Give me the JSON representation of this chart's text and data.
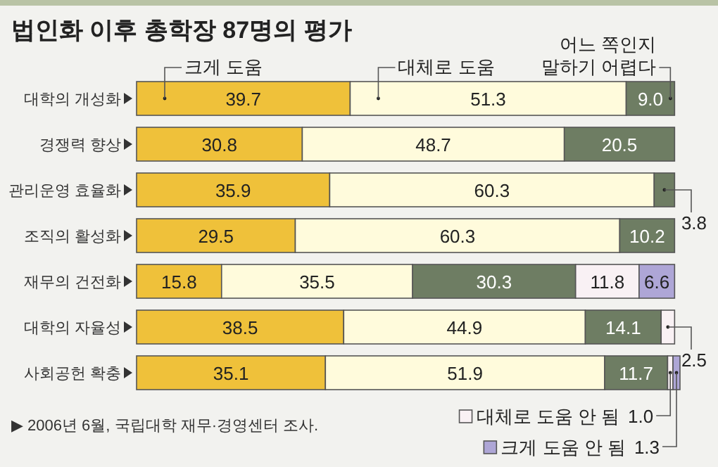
{
  "chart_data": {
    "type": "bar",
    "orientation": "horizontal",
    "stacked": true,
    "legend": "bottom right",
    "title": "법인화 이후 총학장 87명의 평가",
    "categories": [
      "대학의 개성화",
      "경쟁력 향상",
      "관리운영 효율화",
      "조직의 활성화",
      "재무의 건전화",
      "대학의 자율성",
      "사회공헌 확충"
    ],
    "series": [
      {
        "name": "크게 도움",
        "color": "#efc13a",
        "values": [
          39.7,
          30.8,
          35.9,
          29.5,
          15.8,
          38.5,
          35.1
        ],
        "value_labels": [
          "39.7",
          "30.8",
          "35.9",
          "29.5",
          "15.8",
          "38.5",
          "35.1"
        ]
      },
      {
        "name": "대체로 도움",
        "color": "#fffbdc",
        "values": [
          51.3,
          48.7,
          60.3,
          60.3,
          35.5,
          44.9,
          51.9
        ],
        "value_labels": [
          "51.3",
          "48.7",
          "60.3",
          "60.3",
          "35.5",
          "44.9",
          "51.9"
        ]
      },
      {
        "name": "어느 쪽인지 말하기 어렵다",
        "color": "#6e7d63",
        "values": [
          9.0,
          20.5,
          3.8,
          10.2,
          30.3,
          14.1,
          11.7
        ],
        "value_labels": [
          "9.0",
          "20.5",
          "3.8",
          "10.2",
          "30.3",
          "14.1",
          "11.7"
        ]
      },
      {
        "name": "대체로 도움 안 됨",
        "color": "#f9f1f4",
        "values": [
          null,
          null,
          null,
          null,
          11.8,
          2.5,
          1.0
        ],
        "value_labels": [
          null,
          null,
          null,
          null,
          "11.8",
          "2.5",
          "1.0"
        ]
      },
      {
        "name": "크게 도움 안 됨",
        "color": "#aea6d6",
        "values": [
          null,
          null,
          null,
          null,
          6.6,
          null,
          1.3
        ],
        "value_labels": [
          null,
          null,
          null,
          null,
          "6.6",
          null,
          "1.3"
        ]
      }
    ],
    "annotations": [
      "▶ 2006년 6월, 국립대학 재무·경영센터 조사."
    ]
  }
}
